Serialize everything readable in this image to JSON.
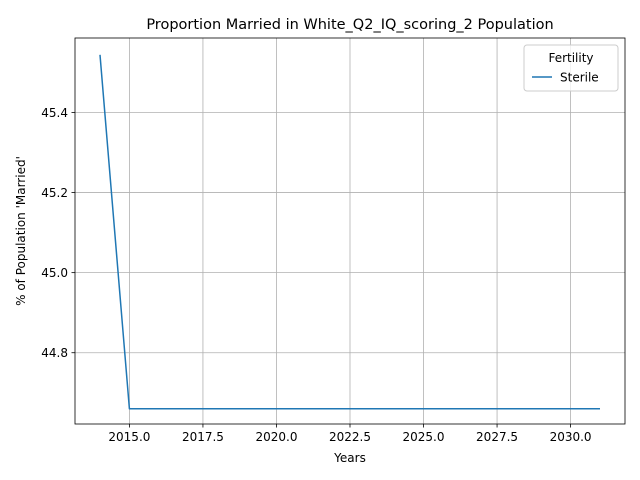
{
  "chart_data": {
    "type": "line",
    "title": "Proportion Married in White_Q2_IQ_scoring_2 Population",
    "xlabel": "Years",
    "ylabel": "% of Population 'Married'",
    "xlim": [
      2013.15,
      2031.85
    ],
    "ylim": [
      44.622,
      45.586
    ],
    "x_ticks": [
      2015.0,
      2017.5,
      2020.0,
      2022.5,
      2025.0,
      2027.5,
      2030.0
    ],
    "x_tick_labels": [
      "2015.0",
      "2017.5",
      "2020.0",
      "2022.5",
      "2025.0",
      "2027.5",
      "2030.0"
    ],
    "y_ticks": [
      44.8,
      45.0,
      45.2,
      45.4
    ],
    "y_tick_labels": [
      "44.8",
      "45.0",
      "45.2",
      "45.4"
    ],
    "grid": true,
    "legend": {
      "title": "Fertility",
      "placement": "top-right"
    },
    "series": [
      {
        "name": "Sterile",
        "color": "#1f77b4",
        "x": [
          2014,
          2015,
          2016,
          2017,
          2018,
          2019,
          2020,
          2021,
          2022,
          2023,
          2024,
          2025,
          2026,
          2027,
          2028,
          2029,
          2030,
          2031
        ],
        "y": [
          45.544,
          44.66,
          44.66,
          44.66,
          44.66,
          44.66,
          44.66,
          44.66,
          44.66,
          44.66,
          44.66,
          44.66,
          44.66,
          44.66,
          44.66,
          44.66,
          44.66,
          44.66
        ]
      }
    ]
  }
}
